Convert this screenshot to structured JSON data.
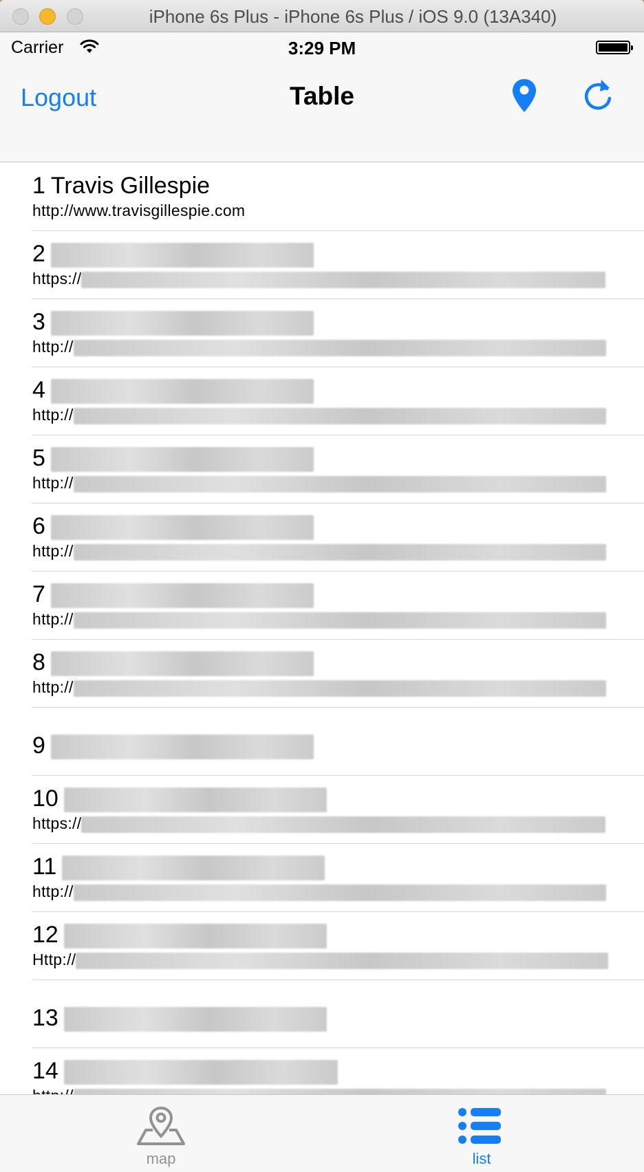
{
  "window": {
    "title": "iPhone 6s Plus - iPhone 6s Plus / iOS 9.0 (13A340)"
  },
  "statusbar": {
    "carrier": "Carrier",
    "time": "3:29 PM"
  },
  "navbar": {
    "left_button": "Logout",
    "title": "Table"
  },
  "rows": [
    {
      "number": "1",
      "name": "Travis Gillespie",
      "url": "http://www.travisgillespie.com"
    },
    {
      "number": "2",
      "name": "",
      "url": "https://"
    },
    {
      "number": "3",
      "name": "",
      "url": "http://"
    },
    {
      "number": "4",
      "name": "",
      "url": "http://"
    },
    {
      "number": "5",
      "name": "",
      "url": "http://"
    },
    {
      "number": "6",
      "name": "",
      "url": "http://"
    },
    {
      "number": "7",
      "name": "",
      "url": "http://"
    },
    {
      "number": "8",
      "name": "",
      "url": "http://"
    },
    {
      "number": "9",
      "name": "",
      "url": ""
    },
    {
      "number": "10",
      "name": "",
      "url": "https://"
    },
    {
      "number": "11",
      "name": "",
      "url": "http://"
    },
    {
      "number": "12",
      "name": "",
      "url": "Http://"
    },
    {
      "number": "13",
      "name": "",
      "url": ""
    },
    {
      "number": "14",
      "name": "",
      "url": "http://"
    }
  ],
  "tabbar": {
    "tabs": [
      {
        "label": "map",
        "icon": "map-pin-icon",
        "selected": false
      },
      {
        "label": "list",
        "icon": "list-icon",
        "selected": true
      }
    ]
  },
  "colors": {
    "accent": "#157efb",
    "inactive": "#929292"
  }
}
